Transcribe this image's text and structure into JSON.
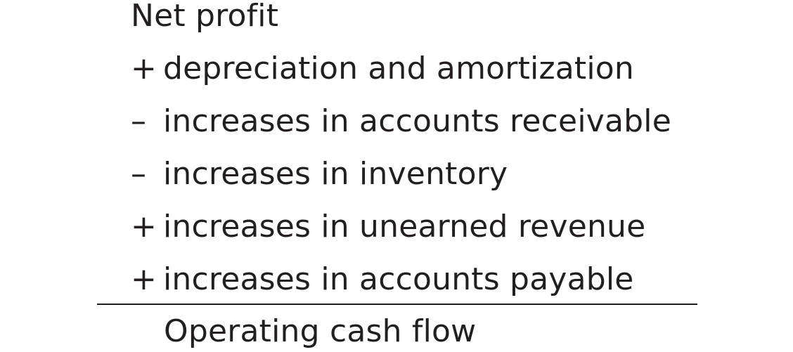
{
  "items": [
    {
      "op": "",
      "text": "Net profit"
    },
    {
      "op": "+",
      "text": "depreciation and amortization"
    },
    {
      "op": "–",
      "text": "increases in accounts receivable"
    },
    {
      "op": "–",
      "text": "increases in inventory"
    },
    {
      "op": "+",
      "text": "increases in unearned revenue"
    },
    {
      "op": "+",
      "text": "increases in accounts payable"
    }
  ],
  "result": {
    "text": "Operating cash flow"
  }
}
